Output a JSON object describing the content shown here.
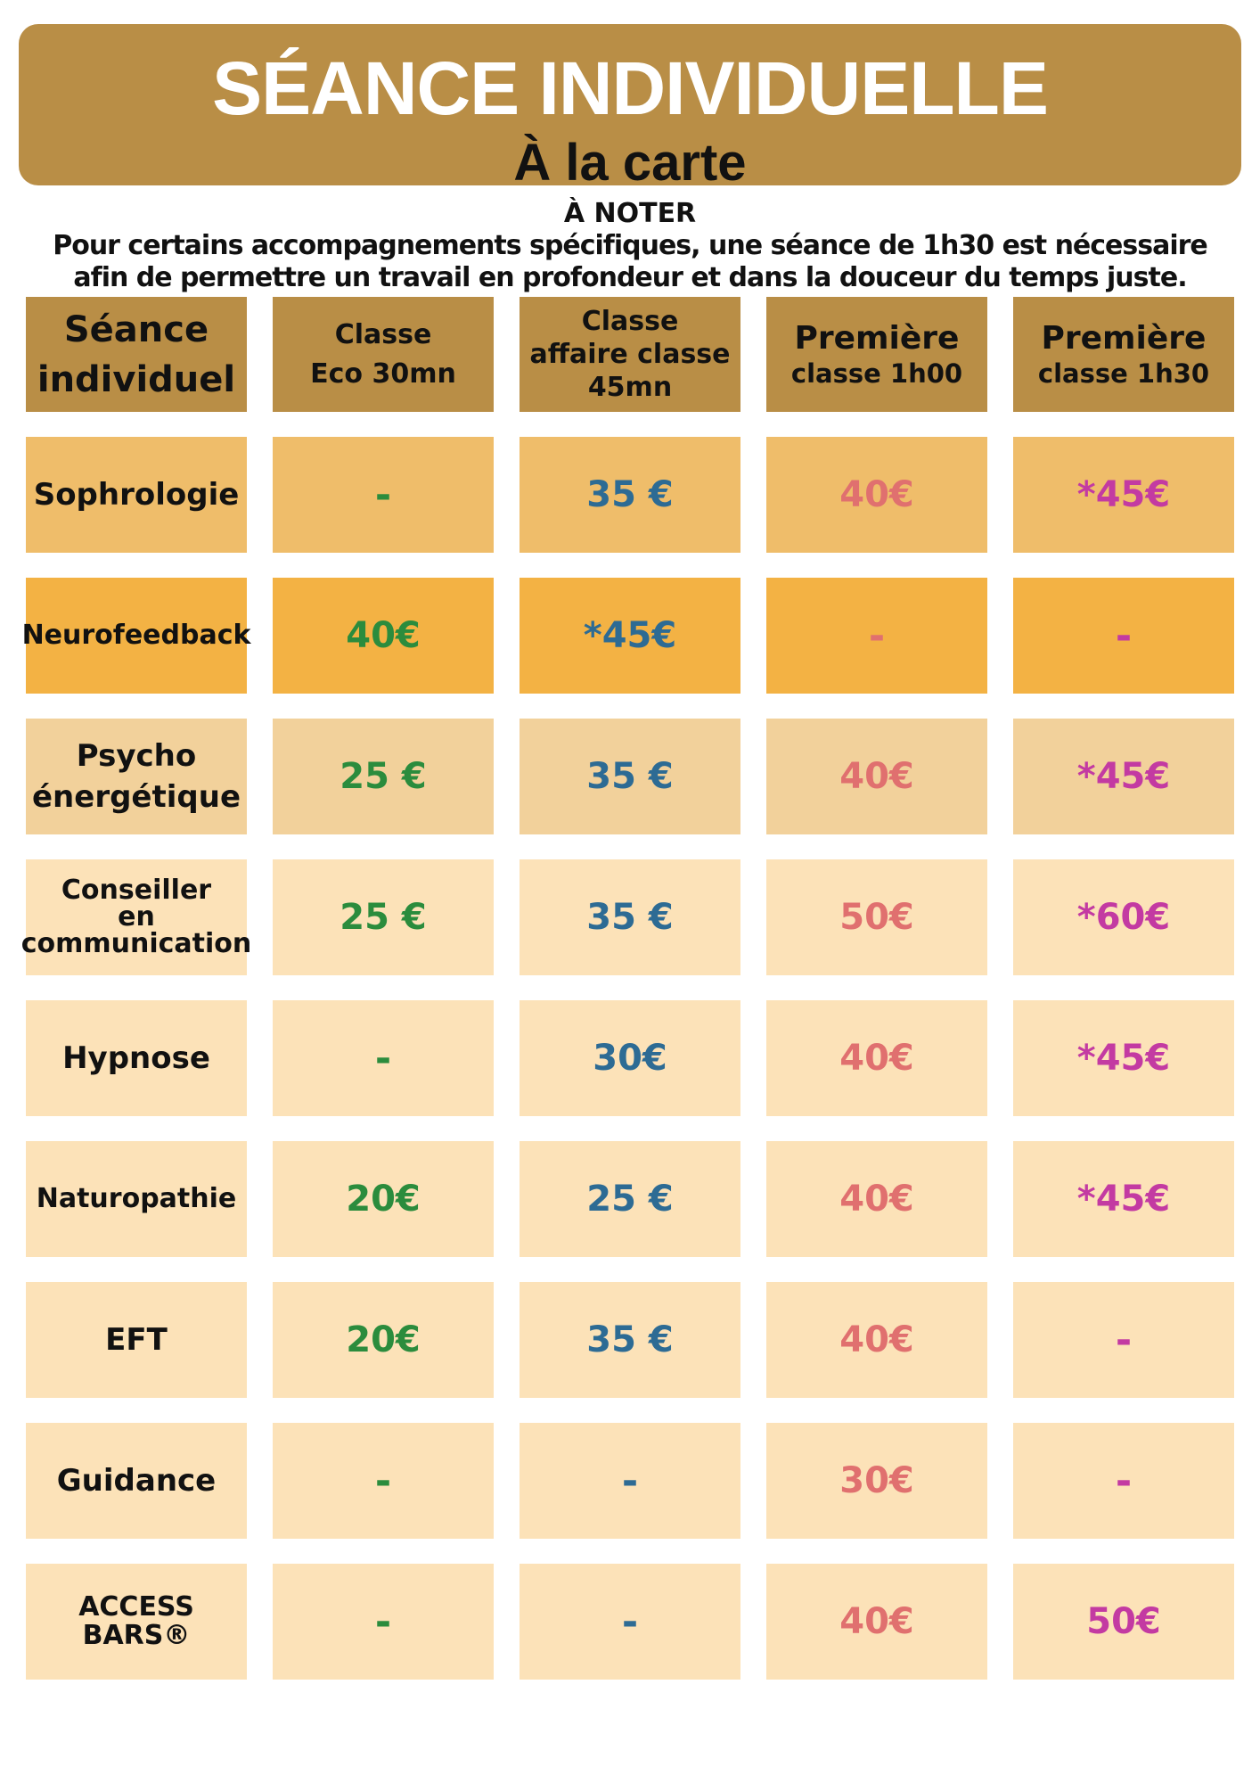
{
  "banner": {
    "title": "SÉANCE INDIVIDUELLE",
    "subtitle": "À la carte"
  },
  "note": {
    "title": "À NOTER",
    "line1": "Pour certains accompagnements spécifiques, une séance de 1h30 est nécessaire",
    "line2": "afin de permettre un travail en profondeur et dans la douceur du temps juste."
  },
  "colors": {
    "header_bg": "#b98e46",
    "col_eco": "#2b8c3d",
    "col_affaire": "#2d6b94",
    "col_premiere_1h00": "#e0706f",
    "col_premiere_1h30": "#c33aa2"
  },
  "table": {
    "headers": [
      {
        "text": "Séance\nindividuel"
      },
      {
        "text": "Classe\nEco  30mn"
      },
      {
        "text": "Classe\naffaire classe\n45mn"
      },
      {
        "big": "Première",
        "small": "classe 1h00"
      },
      {
        "big": "Première",
        "small": "classe 1h30"
      }
    ],
    "rows": [
      {
        "label": "Sophrologie",
        "bg": "#efbd6a",
        "values": [
          "-",
          "35 €",
          "40€",
          "*45€"
        ]
      },
      {
        "label": "Neurofeedback",
        "bg": "#f3b244",
        "values": [
          "40€",
          "*45€",
          "-",
          "-"
        ]
      },
      {
        "label": "Psycho\nénergétique",
        "bg": "#f2d19b",
        "values": [
          "25 €",
          "35 €",
          "40€",
          "*45€"
        ]
      },
      {
        "label": "Conseiller\nen\ncommunication",
        "bg": "#fce2b8",
        "values": [
          "25 €",
          "35 €",
          "50€",
          "*60€"
        ]
      },
      {
        "label": "Hypnose",
        "bg": "#fce2b8",
        "values": [
          "-",
          "30€",
          "40€",
          "*45€"
        ]
      },
      {
        "label": "Naturopathie",
        "bg": "#fce2b8",
        "values": [
          "20€",
          "25 €",
          "40€",
          "*45€"
        ]
      },
      {
        "label": "EFT",
        "bg": "#fce2b8",
        "values": [
          "20€",
          "35 €",
          "40€",
          "-"
        ]
      },
      {
        "label": "Guidance",
        "bg": "#fce2b8",
        "values": [
          "-",
          "-",
          "30€",
          "-"
        ]
      },
      {
        "label": "ACCESS\nBARS®",
        "bg": "#fce2b8",
        "values": [
          "-",
          "-",
          "40€",
          "50€"
        ]
      }
    ]
  }
}
